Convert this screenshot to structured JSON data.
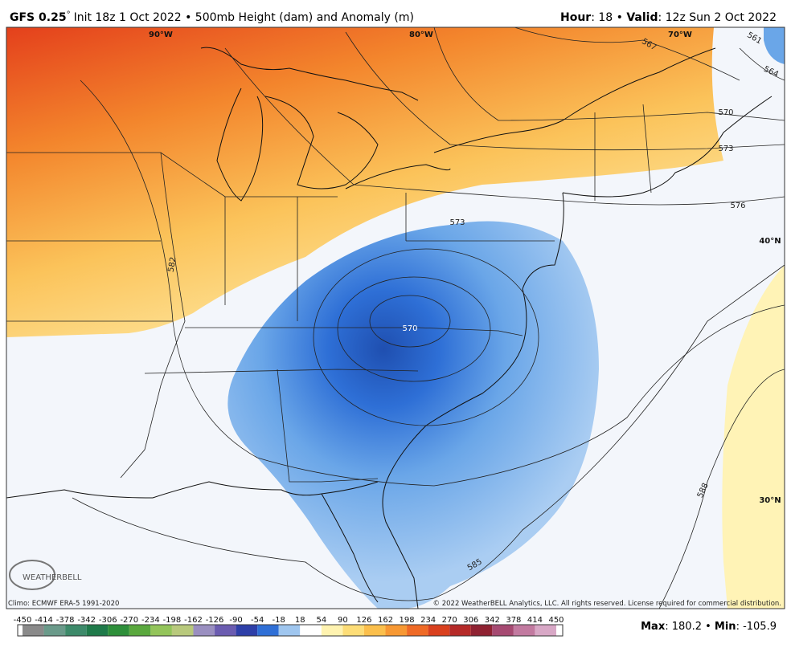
{
  "header": {
    "model": "GFS 0.25",
    "degree": "°",
    "description": "Init 18z 1 Oct 2022 • 500mb Height (dam) and Anomaly (m)",
    "hour_label": "Hour",
    "hour_value": ": 18 • ",
    "valid_label": "Valid",
    "valid_value": ": 12z Sun 2 Oct 2022"
  },
  "map": {
    "grid_labels": [
      "90°W",
      "80°W",
      "70°W",
      "40°N",
      "30°N"
    ],
    "contour_labels": [
      567,
      564,
      561,
      570,
      573,
      576,
      582,
      573,
      570,
      588,
      585
    ],
    "logo": "WEATHERBELL",
    "climo": "Climo: ECMWF ERA-5 1991-2020",
    "copyright": "© 2022 WeatherBELL Analytics, LLC. All rights reserved. License required for commercial distribution."
  },
  "colorbar": {
    "ticks": [
      -450,
      -414,
      -378,
      -342,
      -306,
      -270,
      -234,
      -198,
      -162,
      -126,
      -90,
      -54,
      -18,
      18,
      54,
      90,
      126,
      162,
      198,
      234,
      270,
      306,
      342,
      378,
      414,
      450
    ],
    "colors": [
      "#8a8a8a",
      "#6a9a8a",
      "#3d8a6a",
      "#1f7a4a",
      "#2e8f3a",
      "#5aa83e",
      "#93c45a",
      "#b8c97c",
      "#9a8fc0",
      "#6b5cb0",
      "#2e3fa8",
      "#2f6fd6",
      "#9fc6ef",
      "#ffffff",
      "#fff3b0",
      "#fddd77",
      "#fbbf4c",
      "#f79833",
      "#ef6a26",
      "#d9401e",
      "#b52a28",
      "#8f2232",
      "#a64a72",
      "#c27aa0",
      "#d8a8c6"
    ]
  },
  "stats": {
    "max_label": "Max",
    "max": 180.2,
    "min_label": "Min",
    "min": -105.9
  }
}
